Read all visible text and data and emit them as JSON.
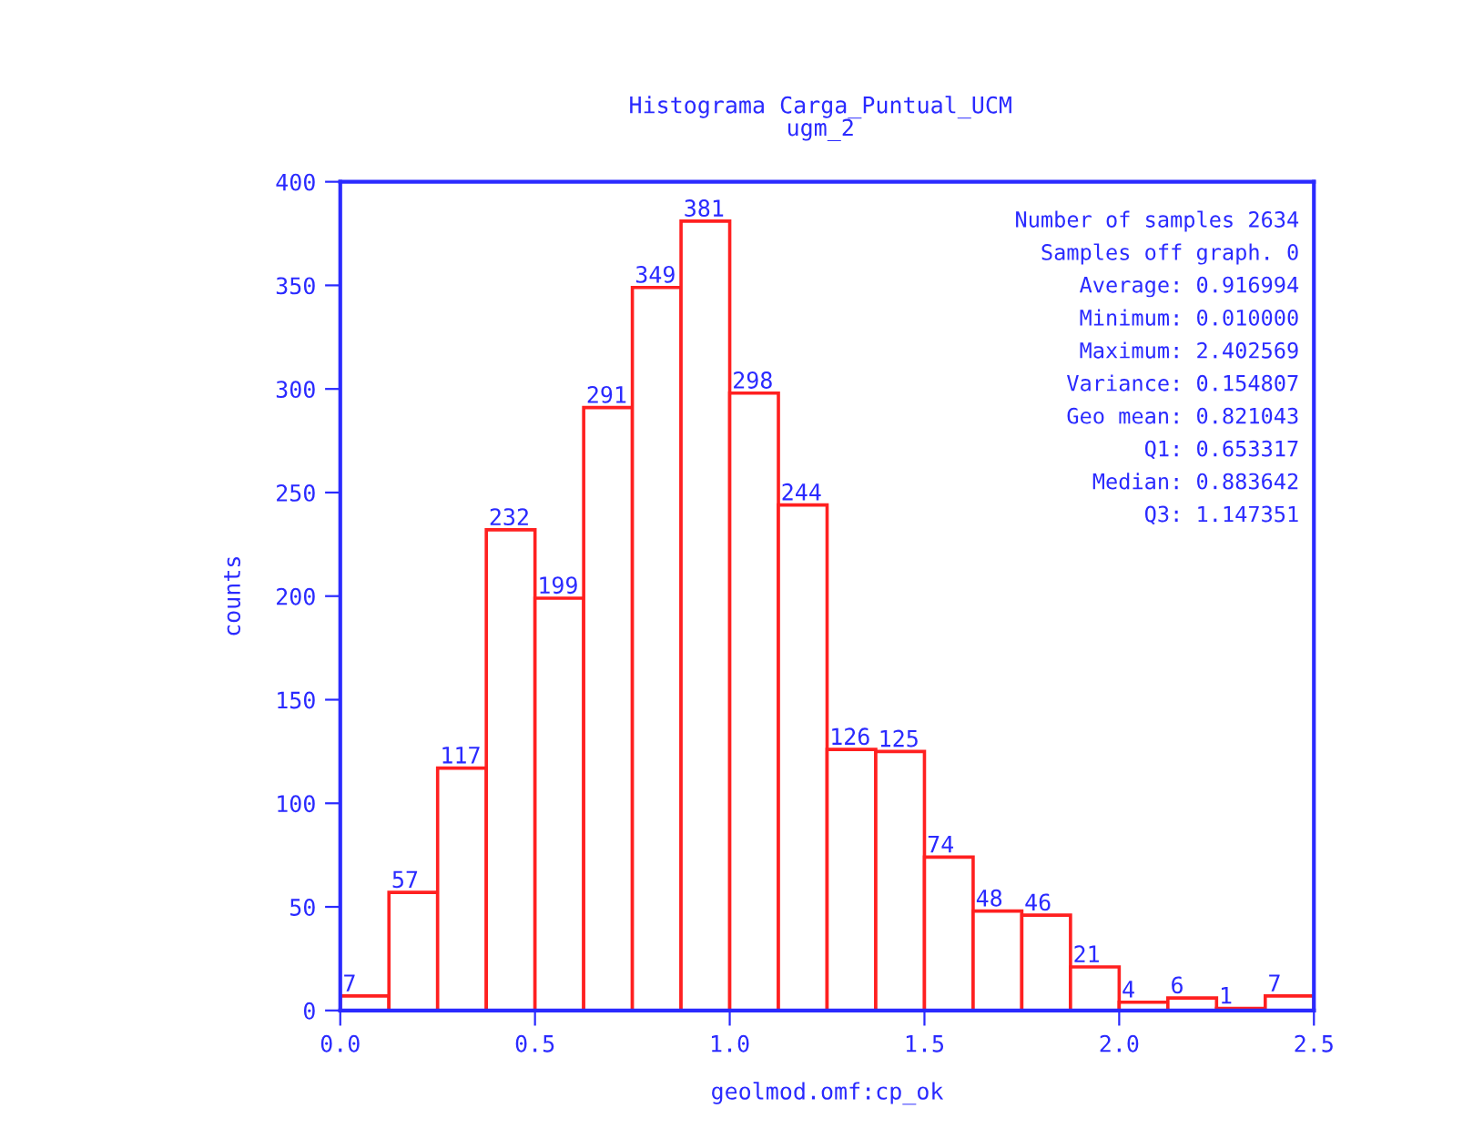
{
  "chart_data": {
    "type": "histogram",
    "title": "Histograma Carga_Puntual_UCM",
    "subtitle": "ugm_2",
    "xlabel": "geolmod.omf:cp_ok",
    "ylabel": "counts",
    "bins": [
      0,
      0.125,
      0.25,
      0.375,
      0.5,
      0.625,
      0.75,
      0.875,
      1.0,
      1.125,
      1.25,
      1.375,
      1.5,
      1.625,
      1.75,
      1.875,
      2.0,
      2.125,
      2.25,
      2.375,
      2.5
    ],
    "values": [
      7,
      57,
      117,
      232,
      199,
      291,
      349,
      381,
      298,
      244,
      126,
      125,
      74,
      48,
      46,
      21,
      4,
      6,
      1,
      7
    ],
    "color": "#ff2020",
    "data_labels": true,
    "xlim": [
      0,
      2.5
    ],
    "xticks": [
      {
        "value": 0,
        "label": "0.0"
      },
      0.5,
      {
        "value": 1,
        "label": "1.0"
      },
      1.5,
      {
        "value": 2,
        "label": "2.0"
      },
      2.5
    ],
    "ylim": [
      0,
      400
    ],
    "yticks": [
      0,
      50,
      100,
      150,
      200,
      250,
      300,
      350,
      400
    ],
    "grid": false,
    "annotations": [
      "Number of samples 2634",
      "Samples off graph. 0",
      "Average: 0.916994",
      "Minimum: 0.010000",
      "Maximum: 2.402569",
      "Variance: 0.154807",
      "Geo mean: 0.821043",
      "Q1: 0.653317",
      "Median: 0.883642",
      "Q3: 1.147351"
    ]
  }
}
